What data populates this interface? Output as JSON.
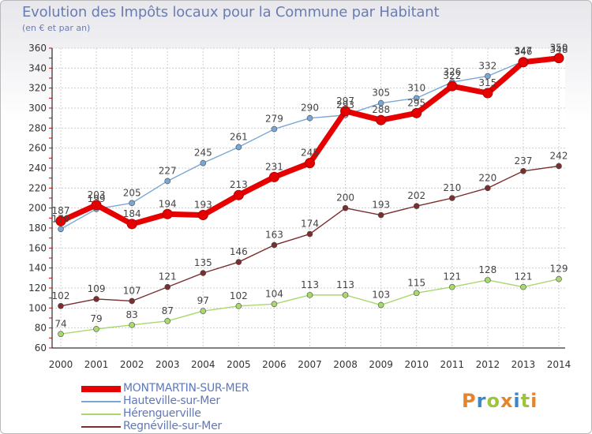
{
  "header": {
    "title": "Evolution des Impôts locaux pour la Commune par Habitant",
    "subtitle": "(en € et par an)"
  },
  "logo": {
    "text": "Proxiti",
    "colors": [
      "#e6842b",
      "#3b86c6",
      "#9ec43a",
      "#e6842b",
      "#3b86c6",
      "#9ec43a",
      "#e6842b"
    ]
  },
  "chart_data": {
    "type": "line",
    "x": [
      "2000",
      "2001",
      "2002",
      "2003",
      "2004",
      "2005",
      "2006",
      "2007",
      "2008",
      "2009",
      "2010",
      "2011",
      "2012",
      "2013",
      "2014"
    ],
    "ylim": [
      60,
      360
    ],
    "yticks": [
      60,
      80,
      100,
      120,
      140,
      160,
      180,
      200,
      220,
      240,
      260,
      280,
      300,
      320,
      340,
      360
    ],
    "grid": true,
    "legend_position": "bottom-left",
    "series": [
      {
        "name": "MONTMARTIN-SUR-MER",
        "color": "#e60000",
        "values": [
          187,
          203,
          184,
          194,
          193,
          213,
          231,
          245,
          297,
          288,
          295,
          322,
          315,
          346,
          350
        ]
      },
      {
        "name": "Hauteville-sur-Mer",
        "color": "#7aa8d6",
        "values": [
          179,
          199,
          205,
          227,
          245,
          261,
          279,
          290,
          293,
          305,
          310,
          326,
          332,
          347,
          348
        ]
      },
      {
        "name": "Hérenguerville",
        "color": "#a8d86e",
        "values": [
          74,
          79,
          83,
          87,
          97,
          102,
          104,
          113,
          113,
          103,
          115,
          121,
          128,
          121,
          129
        ]
      },
      {
        "name": "Regnéville-sur-Mer",
        "color": "#7a2e2e",
        "values": [
          102,
          109,
          107,
          121,
          135,
          146,
          163,
          174,
          200,
          193,
          202,
          210,
          220,
          237,
          242
        ]
      }
    ]
  }
}
